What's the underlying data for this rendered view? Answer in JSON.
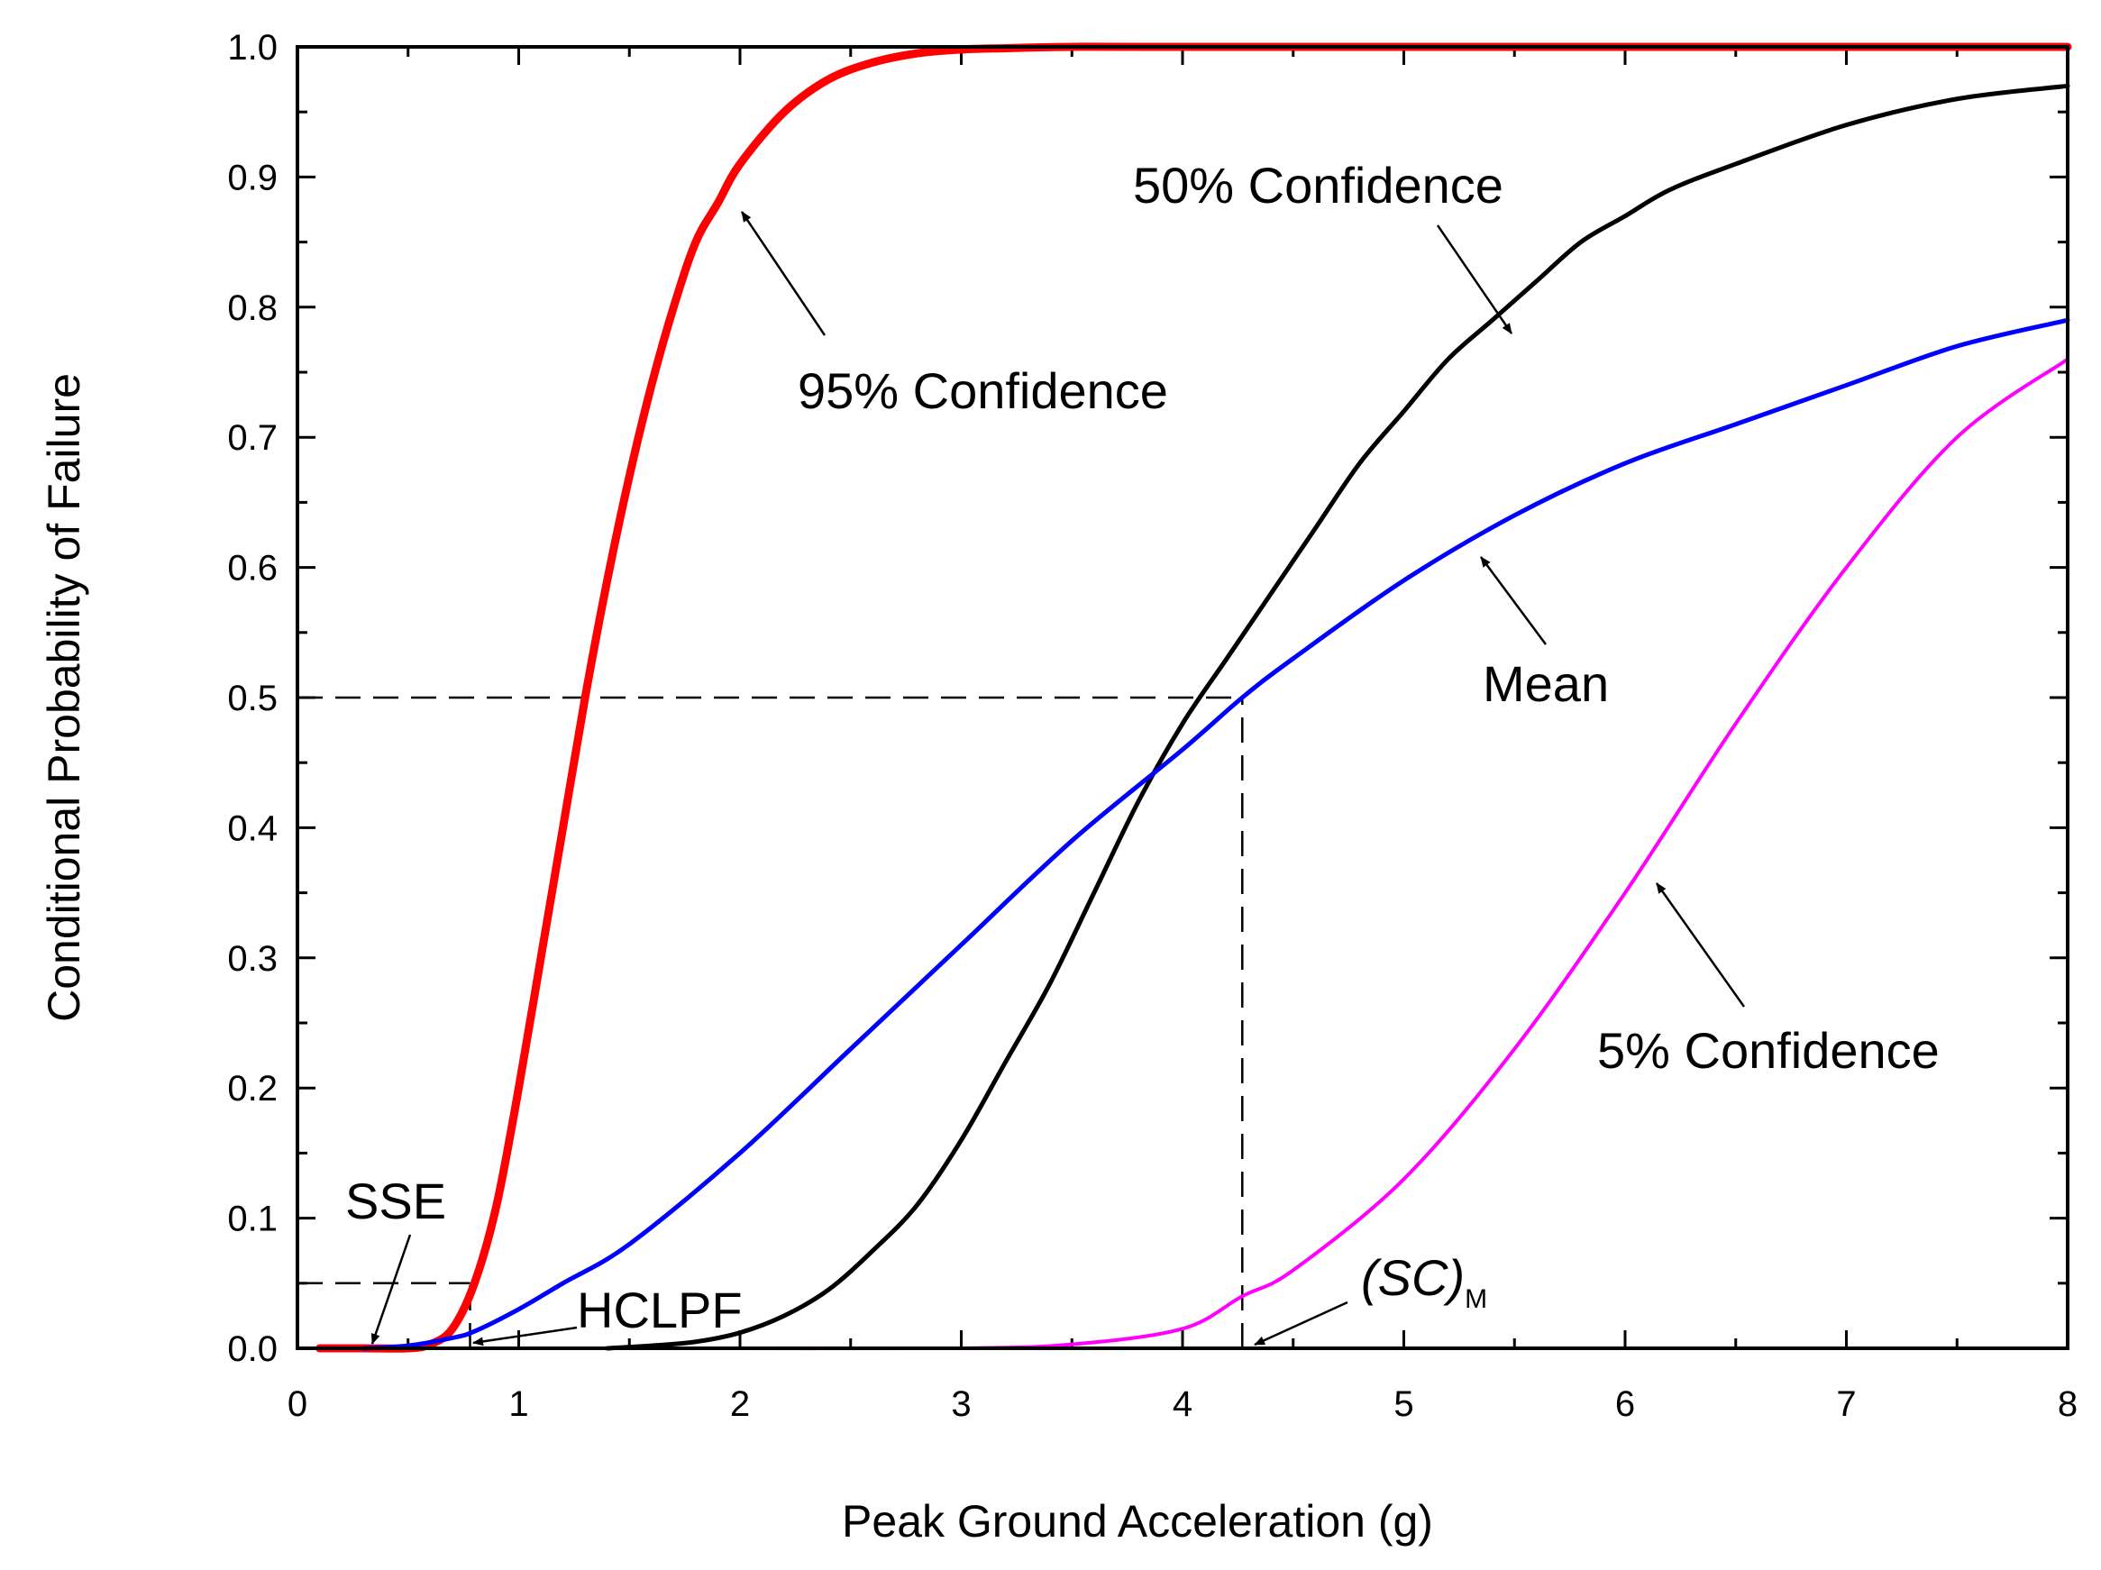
{
  "chart_data": {
    "type": "line",
    "title": "",
    "xlabel": "Peak Ground Acceleration (g)",
    "ylabel": "Conditional Probability of Failure",
    "xlim": [
      0,
      8
    ],
    "ylim": [
      0,
      1.0
    ],
    "x_ticks": [
      "0",
      "1",
      "2",
      "3",
      "4",
      "5",
      "6",
      "7",
      "8"
    ],
    "y_ticks": [
      "0.0",
      "0.1",
      "0.2",
      "0.3",
      "0.4",
      "0.5",
      "0.6",
      "0.7",
      "0.8",
      "0.9",
      "1.0"
    ],
    "grid": false,
    "legend": "none",
    "series": [
      {
        "color": "#ff0000",
        "x": [
          0.1,
          0.3,
          0.5,
          0.6,
          0.7,
          0.8,
          0.9,
          1.0,
          1.1,
          1.2,
          1.3,
          1.4,
          1.5,
          1.6,
          1.7,
          1.8,
          1.9,
          2.0,
          2.2,
          2.4,
          2.6,
          2.8,
          3.0,
          3.2,
          3.5,
          4.0,
          5.0,
          6.0,
          7.0,
          8.0
        ],
        "y": [
          0.0,
          0.0,
          0.0,
          0.003,
          0.015,
          0.05,
          0.11,
          0.2,
          0.3,
          0.4,
          0.5,
          0.59,
          0.67,
          0.74,
          0.8,
          0.85,
          0.88,
          0.91,
          0.95,
          0.975,
          0.988,
          0.995,
          0.998,
          0.999,
          1.0,
          1.0,
          1.0,
          1.0,
          1.0,
          1.0
        ]
      },
      {
        "color": "#000000",
        "x": [
          1.4,
          1.6,
          1.8,
          2.0,
          2.2,
          2.4,
          2.6,
          2.8,
          3.0,
          3.2,
          3.4,
          3.6,
          3.8,
          4.0,
          4.2,
          4.4,
          4.6,
          4.8,
          5.0,
          5.2,
          5.4,
          5.6,
          5.8,
          6.0,
          6.2,
          6.5,
          7.0,
          7.5,
          8.0
        ],
        "y": [
          0.0,
          0.002,
          0.005,
          0.012,
          0.025,
          0.045,
          0.075,
          0.11,
          0.16,
          0.22,
          0.28,
          0.35,
          0.42,
          0.48,
          0.53,
          0.58,
          0.63,
          0.68,
          0.72,
          0.76,
          0.79,
          0.82,
          0.85,
          0.87,
          0.89,
          0.91,
          0.94,
          0.96,
          0.97
        ]
      },
      {
        "color": "#0000ff",
        "x": [
          0.3,
          0.5,
          0.7,
          0.8,
          1.0,
          1.2,
          1.5,
          2.0,
          2.5,
          3.0,
          3.5,
          4.0,
          4.27,
          4.5,
          5.0,
          5.5,
          6.0,
          6.5,
          7.0,
          7.5,
          8.0
        ],
        "y": [
          0.0,
          0.002,
          0.008,
          0.013,
          0.03,
          0.05,
          0.08,
          0.15,
          0.23,
          0.31,
          0.39,
          0.46,
          0.5,
          0.53,
          0.59,
          0.64,
          0.68,
          0.71,
          0.74,
          0.77,
          0.79
        ]
      },
      {
        "color": "#ff00ff",
        "x": [
          0.1,
          1.0,
          2.0,
          3.0,
          3.5,
          4.0,
          4.27,
          4.5,
          5.0,
          5.5,
          6.0,
          6.5,
          7.0,
          7.5,
          8.0
        ],
        "y": [
          0.0,
          0.0,
          0.0,
          0.0,
          0.003,
          0.015,
          0.04,
          0.06,
          0.13,
          0.23,
          0.35,
          0.48,
          0.6,
          0.7,
          0.76
        ]
      }
    ],
    "annotations": {
      "conf95": "95% Confidence",
      "conf50": "50% Confidence",
      "mean": "Mean",
      "conf5": "5% Confidence",
      "sse": "SSE",
      "hclpf": "HCLPF",
      "scm_main": "(SC)",
      "scm_sub": "M"
    },
    "reference_lines": [
      {
        "from": [
          0,
          0.5
        ],
        "to": [
          4.27,
          0.5
        ]
      },
      {
        "from": [
          4.27,
          0
        ],
        "to": [
          4.27,
          0.5
        ]
      },
      {
        "from": [
          0,
          0.05
        ],
        "to": [
          0.78,
          0.05
        ]
      },
      {
        "from": [
          0.78,
          0
        ],
        "to": [
          0.78,
          0.05
        ]
      }
    ]
  }
}
